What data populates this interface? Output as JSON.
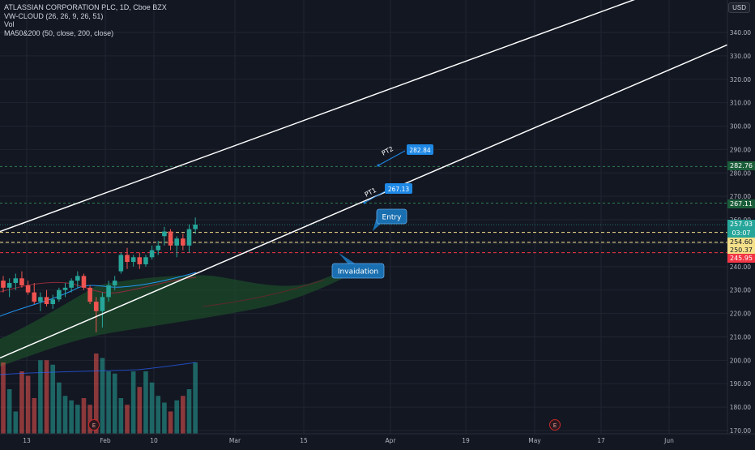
{
  "legend": {
    "symbol": "ATLASSIAN CORPORATION PLC, 1D, Cboe BZX",
    "ind1": "VW-CLOUD (26, 26, 9, 26, 51)",
    "ind2": "Vol",
    "ind3": "MA50&200 (50, close, 200, close)"
  },
  "currency": "USD",
  "y_ticks": [
    "340.00",
    "330.00",
    "320.00",
    "310.00",
    "300.00",
    "290.00",
    "280.00",
    "270.00",
    "260.00",
    "250.00",
    "240.00",
    "230.00",
    "220.00",
    "210.00",
    "200.00",
    "190.00",
    "180.00",
    "170.00"
  ],
  "x_ticks": [
    "13",
    "Feb",
    "10",
    "Mar",
    "15",
    "Apr",
    "19",
    "May",
    "17",
    "Jun"
  ],
  "price_boxes": [
    {
      "label": "282.76",
      "value": 282.76,
      "bg": "#1b5e3a",
      "fg": "#ffffff"
    },
    {
      "label": "267.11",
      "value": 267.11,
      "bg": "#1b5e3a",
      "fg": "#ffffff"
    },
    {
      "label": "257.93",
      "value": 257.93,
      "bg": "#26a69a",
      "fg": "#ffffff"
    },
    {
      "label": "03:07",
      "value": 256.03,
      "bg": "#26a69a",
      "fg": "#ffffff"
    },
    {
      "label": "254.60",
      "value": 254.6,
      "bg": "#f5e08a",
      "fg": "#131722"
    },
    {
      "label": "250.37",
      "value": 250.37,
      "bg": "#f5e08a",
      "fg": "#131722"
    },
    {
      "label": "245.95",
      "value": 245.95,
      "bg": "#f23645",
      "fg": "#ffffff"
    }
  ],
  "annotations": {
    "pt2_label": "PT2",
    "pt2_value": "282.84",
    "pt1_label": "PT1",
    "pt1_value": "267.13",
    "entry": "Entry",
    "invalidation": "Invaidation"
  },
  "earnings_marker": "E",
  "colors": {
    "up": "#26a69a",
    "down": "#ef5350",
    "upper_line": "#ffffff",
    "entry_line": "#f5e08a",
    "stop_line": "#f23645",
    "target_line": "#2e7d4f",
    "callout_blue": "#1e88e5",
    "callout_dark": "#1a6fb0",
    "cloud": "#1c4a2a"
  },
  "chart_data": {
    "type": "candlestick",
    "symbol": "ATLASSIAN CORPORATION PLC",
    "interval": "1D",
    "ylim": [
      167,
      345
    ],
    "grid": true,
    "candles": [
      {
        "o": 234,
        "h": 236,
        "l": 229,
        "c": 231
      },
      {
        "o": 231,
        "h": 235,
        "l": 227,
        "c": 233
      },
      {
        "o": 233,
        "h": 237,
        "l": 230,
        "c": 235
      },
      {
        "o": 235,
        "h": 238,
        "l": 231,
        "c": 232
      },
      {
        "o": 232,
        "h": 234,
        "l": 228,
        "c": 229
      },
      {
        "o": 229,
        "h": 233,
        "l": 224,
        "c": 225
      },
      {
        "o": 225,
        "h": 229,
        "l": 221,
        "c": 227
      },
      {
        "o": 227,
        "h": 230,
        "l": 223,
        "c": 224
      },
      {
        "o": 224,
        "h": 228,
        "l": 222,
        "c": 226
      },
      {
        "o": 226,
        "h": 231,
        "l": 225,
        "c": 230
      },
      {
        "o": 230,
        "h": 233,
        "l": 227,
        "c": 231
      },
      {
        "o": 231,
        "h": 235,
        "l": 229,
        "c": 234
      },
      {
        "o": 234,
        "h": 238,
        "l": 231,
        "c": 236
      },
      {
        "o": 236,
        "h": 237,
        "l": 230,
        "c": 231
      },
      {
        "o": 231,
        "h": 232,
        "l": 224,
        "c": 225
      },
      {
        "o": 225,
        "h": 227,
        "l": 212,
        "c": 221
      },
      {
        "o": 221,
        "h": 229,
        "l": 214,
        "c": 227
      },
      {
        "o": 227,
        "h": 234,
        "l": 225,
        "c": 232
      },
      {
        "o": 232,
        "h": 236,
        "l": 230,
        "c": 234
      },
      {
        "o": 238,
        "h": 246,
        "l": 237,
        "c": 245
      },
      {
        "o": 245,
        "h": 248,
        "l": 239,
        "c": 242
      },
      {
        "o": 242,
        "h": 245,
        "l": 240,
        "c": 244
      },
      {
        "o": 244,
        "h": 246,
        "l": 239,
        "c": 241
      },
      {
        "o": 241,
        "h": 245,
        "l": 240,
        "c": 244
      },
      {
        "o": 244,
        "h": 249,
        "l": 243,
        "c": 247
      },
      {
        "o": 247,
        "h": 251,
        "l": 245,
        "c": 249
      },
      {
        "o": 253,
        "h": 257,
        "l": 249,
        "c": 255
      },
      {
        "o": 255,
        "h": 256,
        "l": 247,
        "c": 249
      },
      {
        "o": 249,
        "h": 253,
        "l": 244,
        "c": 252
      },
      {
        "o": 252,
        "h": 254,
        "l": 247,
        "c": 249
      },
      {
        "o": 249,
        "h": 258,
        "l": 246,
        "c": 256
      },
      {
        "o": 256,
        "h": 261,
        "l": 254,
        "c": 257.93
      }
    ],
    "volume": [
      32,
      20,
      10,
      28,
      26,
      16,
      33,
      33,
      31,
      23,
      17,
      15,
      13,
      16,
      13,
      36,
      34,
      28,
      27,
      16,
      13,
      28,
      21,
      28,
      23,
      17,
      14,
      10,
      15,
      17,
      20,
      32
    ],
    "trendlines": {
      "upper": [
        [
          0,
          255
        ],
        [
          46,
          300
        ]
      ],
      "lower": [
        [
          0,
          201
        ],
        [
          46,
          254
        ]
      ]
    },
    "levels": {
      "pt2": 282.76,
      "pt1": 267.11,
      "entry_high": 254.6,
      "entry_low": 250.37,
      "invalidation": 245.95
    }
  }
}
